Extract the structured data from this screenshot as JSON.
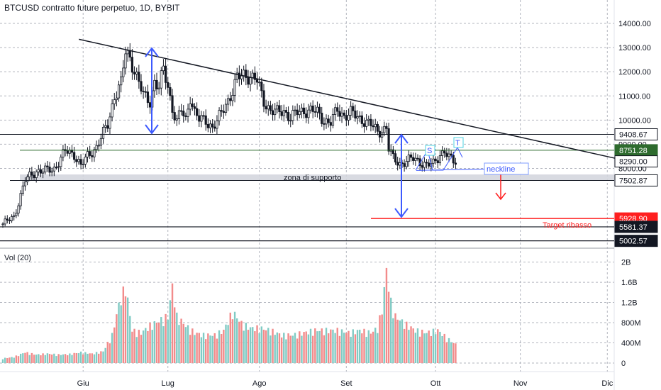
{
  "header": {
    "title": "BTCUSD contratto future perpetuo, 1D, BYBIT"
  },
  "volume_panel": {
    "label": "Vol (20)"
  },
  "annotations": {
    "support_zone": "zona di supporto",
    "neckline": "neckline",
    "target": "Target ribasso",
    "shoulder_s": "S",
    "shoulder_t": "T"
  },
  "colors": {
    "up": "#26a69a",
    "down": "#ef5350",
    "vol_up": "#80cbc4",
    "vol_down": "#f28b8b",
    "arrow": "#3d5afe",
    "target": "#ff1f1f",
    "trendline": "#131722",
    "resistance": "#2e6b2e",
    "zone": "#d1d4dc",
    "axis_text": "#131722"
  },
  "chart_data": [
    {
      "type": "candlestick",
      "title": "BTCUSD contratto future perpetuo, 1D, BYBIT",
      "ylim": [
        4300,
        14800
      ],
      "y_ticks": [
        "14000.00",
        "13000.00",
        "12000.00",
        "11000.00",
        "10000.00",
        "9000.00",
        "8000.00"
      ],
      "x_ticks": [
        "Giu",
        "Lug",
        "Ago",
        "Set",
        "Ott",
        "Nov",
        "Dic"
      ],
      "close_path": [
        [
          0,
          5700
        ],
        [
          5,
          6000
        ],
        [
          10,
          7500
        ],
        [
          15,
          7900
        ],
        [
          20,
          7900
        ],
        [
          23,
          8000
        ],
        [
          28,
          8700
        ],
        [
          32,
          8600
        ],
        [
          35,
          8100
        ],
        [
          38,
          8500
        ],
        [
          42,
          8900
        ],
        [
          47,
          9800
        ],
        [
          50,
          11000
        ],
        [
          53,
          11500
        ],
        [
          55,
          12800
        ],
        [
          57,
          12600
        ],
        [
          60,
          11800
        ],
        [
          63,
          11000
        ],
        [
          66,
          10800
        ],
        [
          68,
          11600
        ],
        [
          70,
          11300
        ],
        [
          72,
          12100
        ],
        [
          74,
          11400
        ],
        [
          76,
          10500
        ],
        [
          78,
          9900
        ],
        [
          80,
          10400
        ],
        [
          82,
          10000
        ],
        [
          84,
          11000
        ],
        [
          86,
          10300
        ],
        [
          88,
          10000
        ],
        [
          91,
          10000
        ],
        [
          94,
          9700
        ],
        [
          96,
          9900
        ],
        [
          99,
          10500
        ],
        [
          103,
          11200
        ],
        [
          105,
          11700
        ],
        [
          108,
          11900
        ],
        [
          111,
          11800
        ],
        [
          114,
          11600
        ],
        [
          117,
          10800
        ],
        [
          120,
          10400
        ],
        [
          123,
          10300
        ],
        [
          126,
          10400
        ],
        [
          129,
          10100
        ],
        [
          132,
          10300
        ],
        [
          135,
          10400
        ],
        [
          138,
          10400
        ],
        [
          141,
          10300
        ],
        [
          144,
          10000
        ],
        [
          147,
          9900
        ],
        [
          150,
          10400
        ],
        [
          153,
          10200
        ],
        [
          156,
          10300
        ],
        [
          159,
          10100
        ],
        [
          162,
          10000
        ],
        [
          165,
          9800
        ],
        [
          168,
          9500
        ],
        [
          170,
          9600
        ],
        [
          172,
          9700
        ],
        [
          173,
          8800
        ],
        [
          175,
          8400
        ],
        [
          178,
          8200
        ],
        [
          181,
          8300
        ],
        [
          184,
          8400
        ],
        [
          187,
          8300
        ],
        [
          190,
          8100
        ],
        [
          193,
          8200
        ],
        [
          196,
          8600
        ],
        [
          198,
          8700
        ],
        [
          200,
          8400
        ],
        [
          203,
          8290
        ]
      ],
      "levels": [
        {
          "label": "9408.67",
          "value": 9408.67
        },
        {
          "label": "8751.28",
          "value": 8751.28
        },
        {
          "label": "8290.00",
          "value": 8290.0
        },
        {
          "label": "7502.87",
          "value": 7502.87
        },
        {
          "label": "5928.90",
          "value": 5928.9
        },
        {
          "label": "5581.37",
          "value": 5581.37
        },
        {
          "label": "5002.57",
          "value": 5002.57
        }
      ],
      "support_zone": [
        7502.87,
        7750
      ],
      "trendline": [
        [
          50,
          13050
        ],
        [
          260,
          8600
        ]
      ],
      "neckline": 7800
    },
    {
      "type": "bar",
      "title": "Vol (20)",
      "ylim": [
        0,
        2100000000
      ],
      "y_ticks": [
        "2B",
        "1.6B",
        "1.2B",
        "800M",
        "400M",
        "0"
      ],
      "volume_path": [
        [
          0,
          100
        ],
        [
          5,
          130
        ],
        [
          10,
          230
        ],
        [
          15,
          180
        ],
        [
          20,
          200
        ],
        [
          25,
          180
        ],
        [
          30,
          190
        ],
        [
          35,
          230
        ],
        [
          40,
          200
        ],
        [
          45,
          250
        ],
        [
          49,
          600
        ],
        [
          52,
          1250
        ],
        [
          55,
          1650
        ],
        [
          58,
          700
        ],
        [
          62,
          650
        ],
        [
          66,
          800
        ],
        [
          70,
          900
        ],
        [
          74,
          1000
        ],
        [
          76,
          1650
        ],
        [
          78,
          1000
        ],
        [
          82,
          800
        ],
        [
          86,
          650
        ],
        [
          90,
          600
        ],
        [
          95,
          600
        ],
        [
          99,
          700
        ],
        [
          103,
          1100
        ],
        [
          107,
          850
        ],
        [
          111,
          750
        ],
        [
          115,
          750
        ],
        [
          120,
          700
        ],
        [
          125,
          600
        ],
        [
          130,
          600
        ],
        [
          135,
          650
        ],
        [
          140,
          700
        ],
        [
          145,
          700
        ],
        [
          150,
          700
        ],
        [
          155,
          650
        ],
        [
          160,
          700
        ],
        [
          165,
          650
        ],
        [
          168,
          750
        ],
        [
          170,
          1150
        ],
        [
          172,
          2000
        ],
        [
          174,
          1300
        ],
        [
          176,
          1000
        ],
        [
          180,
          850
        ],
        [
          185,
          700
        ],
        [
          190,
          650
        ],
        [
          195,
          700
        ],
        [
          200,
          500
        ],
        [
          203,
          400
        ]
      ]
    }
  ]
}
